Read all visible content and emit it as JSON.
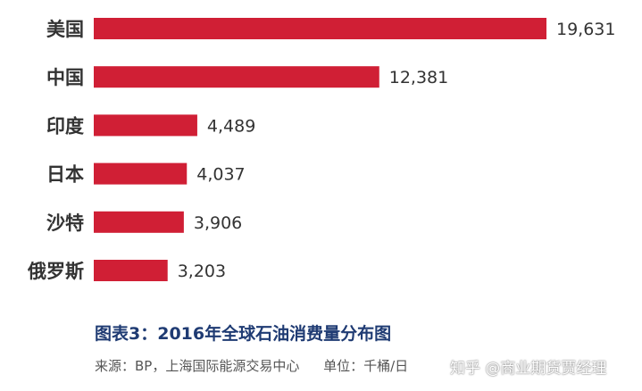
{
  "chart_data": {
    "type": "bar",
    "orientation": "horizontal",
    "categories": [
      "美国",
      "中国",
      "印度",
      "日本",
      "沙特",
      "俄罗斯"
    ],
    "values": [
      19631,
      12381,
      4489,
      4037,
      3906,
      3203
    ],
    "value_labels": [
      "19,631",
      "12,381",
      "4,489",
      "4,037",
      "3,906",
      "3,203"
    ],
    "bar_color": "#d01f35",
    "grid": false
  },
  "caption": {
    "title": "图表3：2016年全球石油消费量分布图",
    "source": "来源：BP，上海国际能源交易中心",
    "unit": "单位：千桶/日"
  },
  "watermark": "知乎 @商业期货贾经理"
}
